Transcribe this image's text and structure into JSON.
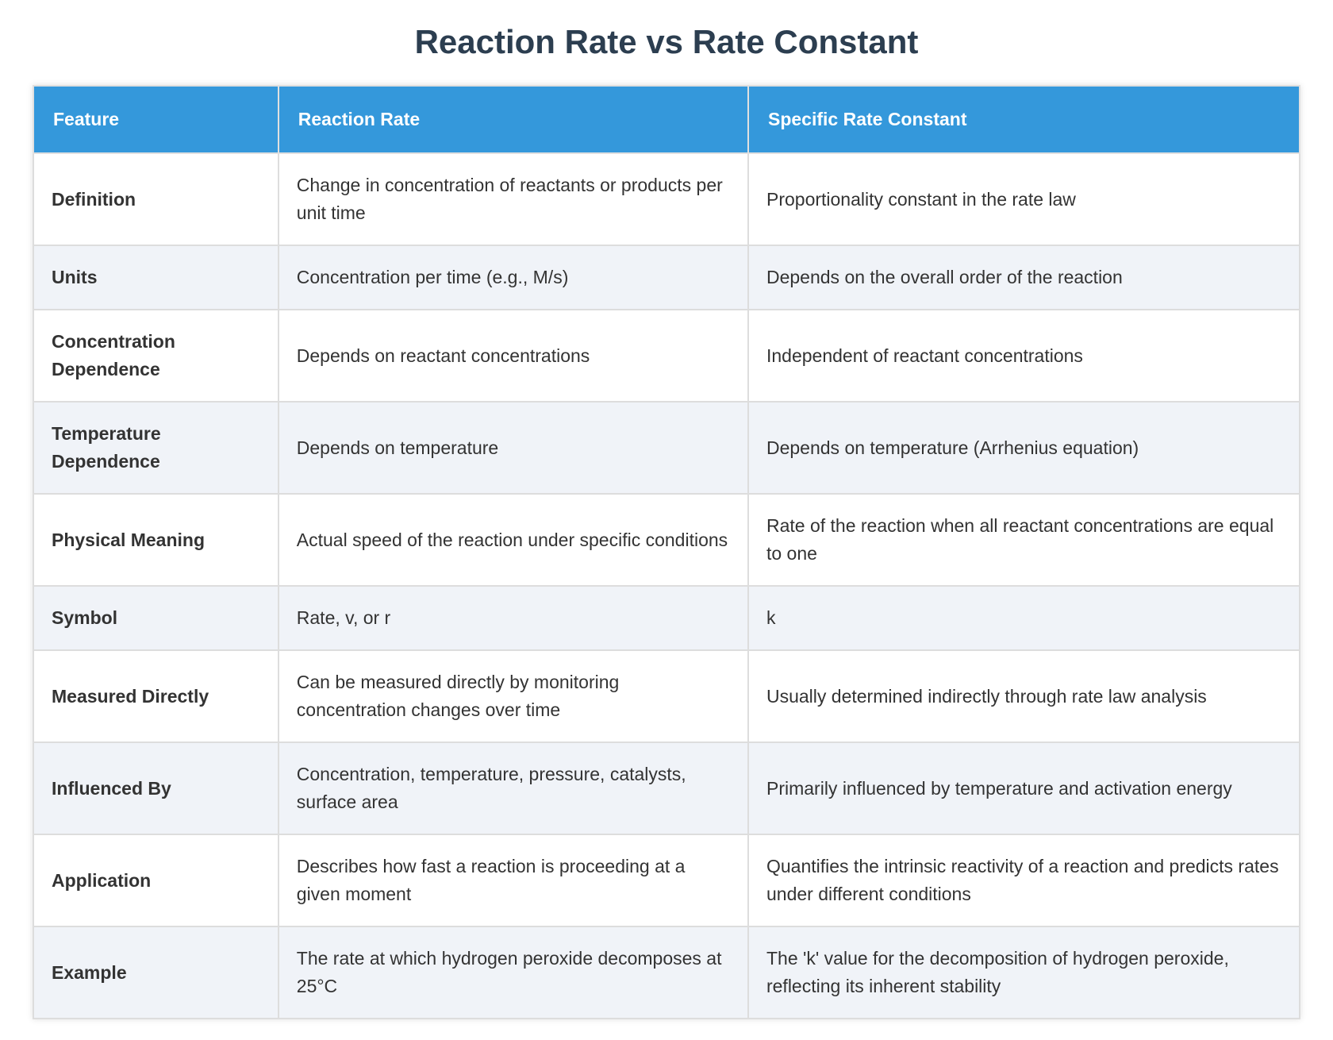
{
  "title": "Reaction Rate vs Rate Constant",
  "table": {
    "header": [
      "Feature",
      "Reaction Rate",
      "Specific Rate Constant"
    ],
    "rows": [
      [
        "Definition",
        "Change in concentration of reactants or products per unit time",
        "Proportionality constant in the rate law"
      ],
      [
        "Units",
        "Concentration per time (e.g., M/s)",
        "Depends on the overall order of the reaction"
      ],
      [
        "Concentration Dependence",
        "Depends on reactant concentrations",
        "Independent of reactant concentrations"
      ],
      [
        "Temperature Dependence",
        "Depends on temperature",
        "Depends on temperature (Arrhenius equation)"
      ],
      [
        "Physical Meaning",
        "Actual speed of the reaction under specific conditions",
        "Rate of the reaction when all reactant concentrations are equal to one"
      ],
      [
        "Symbol",
        "Rate, v, or r",
        "k"
      ],
      [
        "Measured Directly",
        "Can be measured directly by monitoring concentration changes over time",
        "Usually determined indirectly through rate law analysis"
      ],
      [
        "Influenced By",
        "Concentration, temperature, pressure, catalysts, surface area",
        "Primarily influenced by temperature and activation energy"
      ],
      [
        "Application",
        "Describes how fast a reaction is proceeding at a given moment",
        "Quantifies the intrinsic reactivity of a reaction and predicts rates under different conditions"
      ],
      [
        "Example",
        "The rate at which hydrogen peroxide decomposes at 25°C",
        "The 'k' value for the decomposition of hydrogen peroxide, reflecting its inherent stability"
      ]
    ]
  }
}
